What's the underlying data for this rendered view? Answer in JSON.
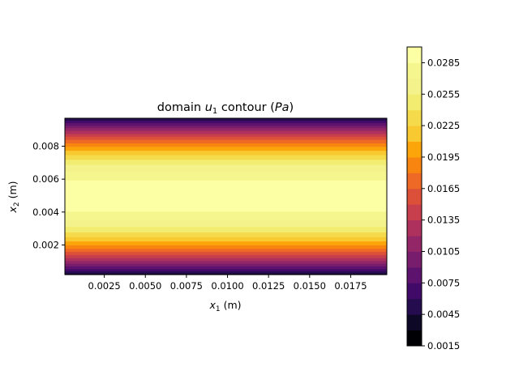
{
  "chart_data": {
    "type": "heatmap",
    "title": "domain u1 contour (Pa)",
    "title_parts": {
      "prefix": "domain ",
      "var": "u",
      "sub": "1",
      "mid": " contour (",
      "unit": "Pa",
      "suffix": ")"
    },
    "xlabel": {
      "var": "x",
      "sub": "1",
      "rest": " (m)"
    },
    "ylabel": {
      "var": "x",
      "sub": "2",
      "rest": " (m)"
    },
    "xlim": [
      0.0001,
      0.0197
    ],
    "ylim": [
      0.0002,
      0.0097
    ],
    "x_ticks": [
      0.0025,
      0.005,
      0.0075,
      0.01,
      0.0125,
      0.015,
      0.0175
    ],
    "x_tick_labels": [
      "0.0025",
      "0.0050",
      "0.0075",
      "0.0100",
      "0.0125",
      "0.0150",
      "0.0175"
    ],
    "y_ticks": [
      0.002,
      0.004,
      0.006,
      0.008
    ],
    "y_tick_labels": [
      "0.002",
      "0.004",
      "0.006",
      "0.008"
    ],
    "field": "u1 varies only with x2; parabolic profile with maximum near x2 = 0.005 m",
    "profile": {
      "x2_center": 0.005,
      "half_width": 0.005,
      "peak": 0.0295,
      "edge_value": 0.0015
    },
    "colormap": "inferno",
    "colorbar": {
      "levels": [
        0.0015,
        0.003,
        0.0045,
        0.006,
        0.0075,
        0.009,
        0.0105,
        0.012,
        0.0135,
        0.015,
        0.0165,
        0.018,
        0.0195,
        0.021,
        0.0225,
        0.024,
        0.0255,
        0.027,
        0.0285,
        0.03
      ],
      "tick_values": [
        0.0015,
        0.0045,
        0.0075,
        0.0105,
        0.0135,
        0.0165,
        0.0195,
        0.0225,
        0.0255,
        0.0285
      ],
      "tick_labels": [
        "0.0015",
        "0.0045",
        "0.0075",
        "0.0105",
        "0.0135",
        "0.0165",
        "0.0195",
        "0.0225",
        "0.0255",
        "0.0285"
      ],
      "colors": [
        "#000004",
        "#0c0826",
        "#240c4f",
        "#420a68",
        "#5d126e",
        "#781c6d",
        "#932667",
        "#ad305d",
        "#c73e4c",
        "#dc5039",
        "#ed6925",
        "#f8850f",
        "#fca50a",
        "#f9c932",
        "#f5db4b",
        "#f2ec70",
        "#f4f28a",
        "#f6f68f",
        "#fcffa4"
      ]
    }
  }
}
